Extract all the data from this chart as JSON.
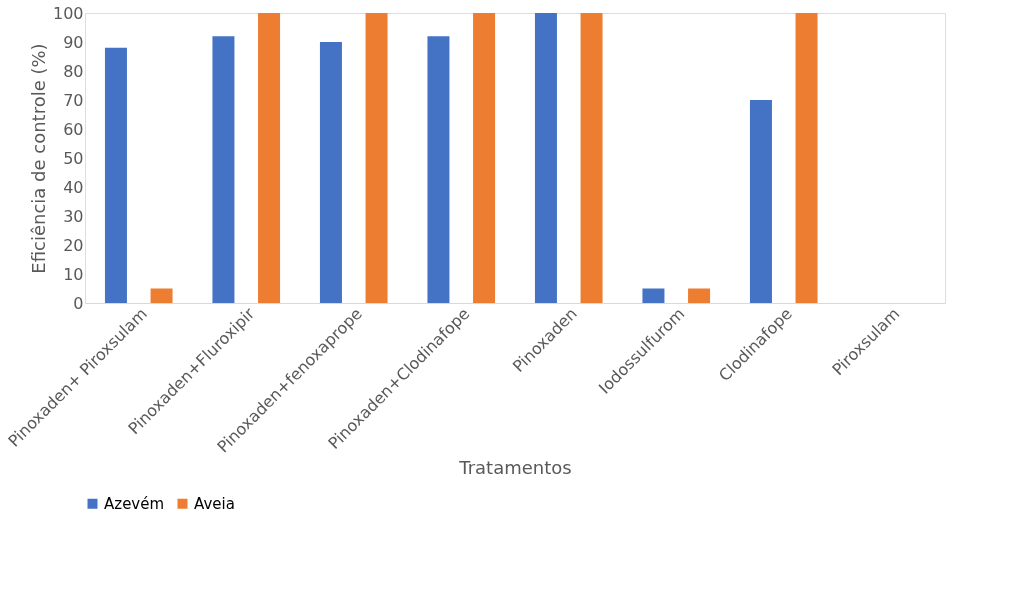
{
  "chart_data": {
    "type": "bar",
    "xlabel": "Tratamentos",
    "ylabel": "Eficiência de controle (%)",
    "categories": [
      "Pinoxaden+ Piroxsulam",
      "Pinoxaden+Fluroxipir",
      "Pinoxaden+fenoxaprope",
      "Pinoxaden+Clodinafope",
      "Pinoxaden",
      "Iodossulfurom",
      "Clodinafope",
      "Piroxsulam"
    ],
    "series": [
      {
        "name": "Azevém",
        "color": "#4472c4",
        "values": [
          88,
          92,
          90,
          92,
          100,
          5,
          70,
          0
        ]
      },
      {
        "name": "Aveia",
        "color": "#ed7d31",
        "values": [
          5,
          100,
          100,
          100,
          100,
          5,
          100,
          0
        ]
      }
    ],
    "ylim": [
      0,
      100
    ],
    "yticks": [
      0,
      10,
      20,
      30,
      40,
      50,
      60,
      70,
      80,
      90,
      100
    ],
    "grid": false,
    "legend": "bottom"
  }
}
